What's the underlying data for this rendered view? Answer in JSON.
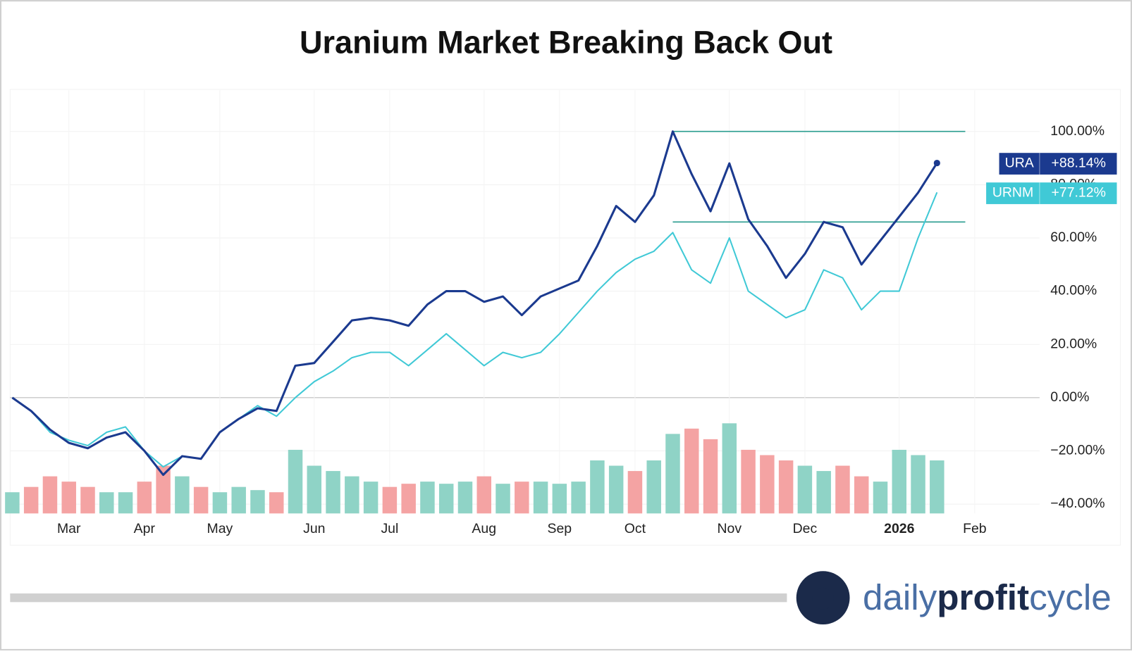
{
  "chart_data": {
    "type": "line",
    "title": "Uranium Market Breaking Back Out",
    "categories": [
      null,
      null,
      null,
      "Mar",
      null,
      null,
      null,
      "Apr",
      null,
      null,
      null,
      "May",
      null,
      null,
      null,
      null,
      "Jun",
      null,
      null,
      null,
      "Jul",
      null,
      null,
      null,
      null,
      "Aug",
      null,
      null,
      null,
      "Sep",
      null,
      null,
      null,
      "Oct",
      null,
      null,
      null,
      null,
      "Nov",
      null,
      null,
      null,
      "Dec",
      null,
      null,
      null,
      null,
      "2026",
      null,
      null,
      null,
      "Feb"
    ],
    "series": [
      {
        "name": "URA",
        "color": "#1b3a8f",
        "values": [
          0,
          -5,
          -12,
          -17,
          -19,
          -15,
          -13,
          -20,
          -29,
          -22,
          -23,
          -13,
          -8,
          -4,
          -5,
          12,
          13,
          21,
          29,
          30,
          29,
          27,
          35,
          40,
          40,
          36,
          38,
          31,
          38,
          41,
          44,
          57,
          72,
          66,
          76,
          100,
          84,
          70,
          88,
          67,
          57,
          45,
          54,
          66,
          64,
          50,
          59,
          68,
          77,
          88.14,
          null,
          null
        ],
        "value_labels": [
          null,
          null,
          null,
          null,
          null,
          null,
          null,
          null,
          null,
          null,
          null,
          null,
          null,
          null,
          null,
          null,
          null,
          null,
          null,
          null,
          null,
          null,
          null,
          null,
          null,
          null,
          null,
          null,
          null,
          null,
          null,
          null,
          null,
          null,
          null,
          null,
          null,
          null,
          null,
          null,
          null,
          null,
          null,
          null,
          null,
          null,
          null,
          null,
          null,
          "+88.14%",
          null,
          null
        ]
      },
      {
        "name": "URNM",
        "color": "#40c9d6",
        "values": [
          0,
          -5,
          -13,
          -16,
          -18,
          -13,
          -11,
          -20,
          -26,
          -22,
          -23,
          -13,
          -8,
          -3,
          -7,
          0,
          6,
          10,
          15,
          17,
          17,
          12,
          18,
          24,
          18,
          12,
          17,
          15,
          17,
          24,
          32,
          40,
          47,
          52,
          55,
          62,
          48,
          43,
          60,
          40,
          35,
          30,
          33,
          48,
          45,
          33,
          40,
          40,
          60,
          77.12,
          null,
          null
        ],
        "value_labels": [
          null,
          null,
          null,
          null,
          null,
          null,
          null,
          null,
          null,
          null,
          null,
          null,
          null,
          null,
          null,
          null,
          null,
          null,
          null,
          null,
          null,
          null,
          null,
          null,
          null,
          null,
          null,
          null,
          null,
          null,
          null,
          null,
          null,
          null,
          null,
          null,
          null,
          null,
          null,
          null,
          null,
          null,
          null,
          null,
          null,
          null,
          null,
          null,
          null,
          "+77.12%",
          null,
          null
        ]
      }
    ],
    "volume": {
      "values": [
        20,
        25,
        35,
        30,
        25,
        20,
        20,
        30,
        45,
        35,
        25,
        20,
        25,
        22,
        20,
        60,
        45,
        40,
        35,
        30,
        25,
        28,
        30,
        28,
        30,
        35,
        28,
        30,
        30,
        28,
        30,
        50,
        45,
        40,
        50,
        75,
        80,
        70,
        85,
        60,
        55,
        50,
        45,
        40,
        45,
        35,
        30,
        60,
        55,
        50,
        null,
        null
      ],
      "up_color": "#8fd3c6",
      "down_color": "#f4a3a3"
    },
    "reference_lines": [
      100,
      66
    ],
    "reference_color": "#2a9d8f",
    "ylim": [
      -43.5,
      115.5
    ],
    "yticks": [
      {
        "value": 100,
        "label": "100.00%"
      },
      {
        "value": 80,
        "label": "80.00%"
      },
      {
        "value": 60,
        "label": "60.00%"
      },
      {
        "value": 40,
        "label": "40.00%"
      },
      {
        "value": 20,
        "label": "20.00%"
      },
      {
        "value": 0,
        "label": "0.00%"
      },
      {
        "value": -20,
        "label": "−20.00%"
      },
      {
        "value": -40,
        "label": "−40.00%"
      }
    ],
    "grid": true
  },
  "brand": {
    "name_parts": [
      "daily",
      "profit",
      "cycle"
    ]
  }
}
